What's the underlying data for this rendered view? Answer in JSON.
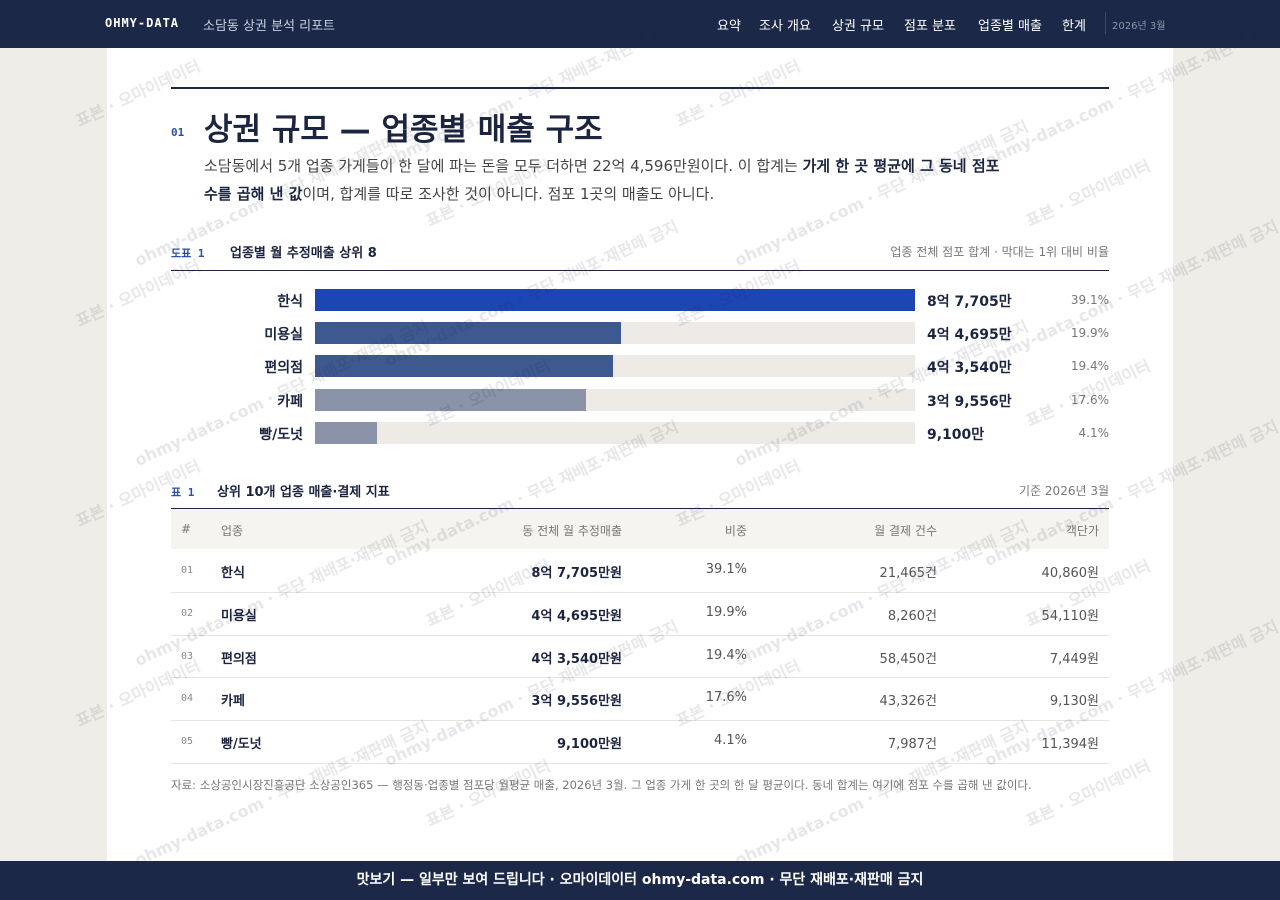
{
  "header": {
    "logo": "OHMY-DATA",
    "title": "소담동 상권 분석 리포트",
    "nav": [
      "요약",
      "조사 개요",
      "상권 규모",
      "점포 분포",
      "업종별 매출",
      "한계"
    ],
    "date": "2026년 3월"
  },
  "section": {
    "number": "01",
    "title": "상권 규모 — 업종별 매출 구조",
    "lead_before": "소담동에서 5개 업종 가게들이 한 달에 파는 돈을 모두 더하면 22억 4,596만원이다. 이 합계는 ",
    "lead_bold": "가게 한 곳 평균에 그 동네 점포 수를 곱해 낸 값",
    "lead_after": "이며, 합계를 따로 조사한 것이 아니다. 점포 1곳의 매출도 아니다."
  },
  "chart_data": {
    "type": "bar",
    "label": "도표 1",
    "title": "업종별 월 추정매출 상위 8",
    "note": "업종 전체 점포 합계 · 막대는 1위 대비 비율",
    "categories": [
      "한식",
      "미용실",
      "편의점",
      "카페",
      "빵/도넛"
    ],
    "values": [
      87705,
      44695,
      43540,
      39556,
      9100
    ],
    "value_labels": [
      "8억 7,705만",
      "4억 4,695만",
      "4억 3,540만",
      "3억 9,556만",
      "9,100만"
    ],
    "shares": [
      "39.1%",
      "19.9%",
      "19.4%",
      "17.6%",
      "4.1%"
    ],
    "colors": [
      "#1d45b3",
      "#3e5890",
      "#3e5890",
      "#8a93a8",
      "#8a93a8"
    ],
    "track_color": "#eeebe6"
  },
  "table": {
    "label": "표 1",
    "title": "상위 10개 업종 매출·결제 지표",
    "note": "기준 2026년 3월",
    "columns": [
      "#",
      "업종",
      "동 전체 월 추정매출",
      "비중",
      "월 결제 건수",
      "객단가"
    ],
    "rows": [
      [
        "01",
        "한식",
        "8억 7,705만원",
        "39.1%",
        "21,465건",
        "40,860원"
      ],
      [
        "02",
        "미용실",
        "4억 4,695만원",
        "19.9%",
        "8,260건",
        "54,110원"
      ],
      [
        "03",
        "편의점",
        "4억 3,540만원",
        "19.4%",
        "58,450건",
        "7,449원"
      ],
      [
        "04",
        "카페",
        "3억 9,556만원",
        "17.6%",
        "43,326건",
        "9,130원"
      ],
      [
        "05",
        "빵/도넛",
        "9,100만원",
        "4.1%",
        "7,987건",
        "11,394원"
      ]
    ]
  },
  "source": "자료: 소상공인시장진흥공단 소상공인365 — 행정동·업종별 점포당 월평균 매출, 2026년 3월. 그 업종 가게 한 곳의 한 달 평균이다. 동네 합계는 여기에 점포 수를 곱해 낸 값이다.",
  "watermark": [
    "표본 · 오마이데이터",
    "ohmy-data.com · 무단 재배포·재판매 금지"
  ],
  "footer": "맛보기 — 일부만 보여 드립니다 · 오마이데이터 ohmy-data.com · 무단 재배포·재판매 금지"
}
